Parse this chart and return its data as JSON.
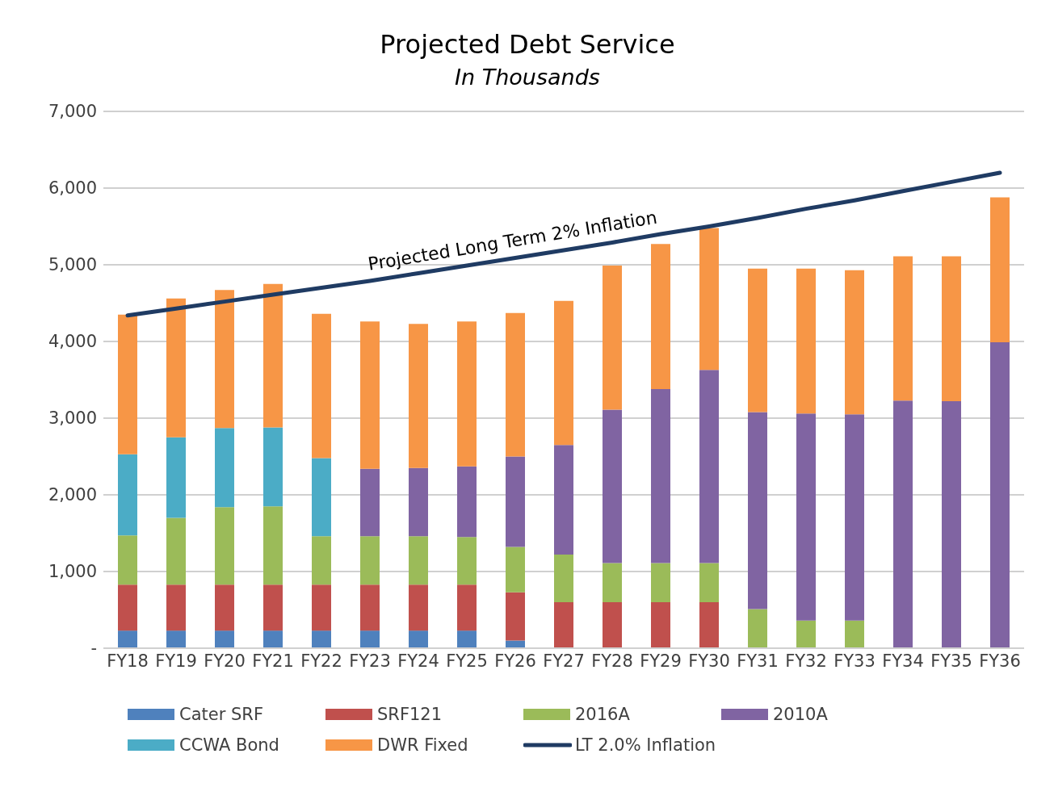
{
  "chart_data": {
    "type": "bar",
    "title": "Projected Debt Service",
    "subtitle": "In Thousands",
    "stacked": true,
    "categories": [
      "FY18",
      "FY19",
      "FY20",
      "FY21",
      "FY22",
      "FY23",
      "FY24",
      "FY25",
      "FY26",
      "FY27",
      "FY28",
      "FY29",
      "FY30",
      "FY31",
      "FY32",
      "FY33",
      "FY34",
      "FY35",
      "FY36"
    ],
    "series": [
      {
        "name": "Cater SRF",
        "color": "#4f81bd",
        "values": [
          230,
          230,
          230,
          230,
          230,
          230,
          230,
          230,
          100,
          null,
          null,
          null,
          null,
          null,
          null,
          null,
          null,
          null,
          null
        ]
      },
      {
        "name": "SRF121",
        "color": "#c0504d",
        "values": [
          600,
          600,
          600,
          600,
          600,
          600,
          600,
          600,
          630,
          600,
          600,
          600,
          600,
          null,
          null,
          null,
          null,
          null,
          null
        ]
      },
      {
        "name": "2016A",
        "color": "#9bbb59",
        "values": [
          640,
          870,
          1010,
          1020,
          630,
          630,
          630,
          620,
          590,
          620,
          510,
          510,
          510,
          510,
          360,
          360,
          null,
          null,
          null
        ]
      },
      {
        "name": "2010A",
        "color": "#8064a2",
        "values": [
          null,
          null,
          null,
          null,
          null,
          880,
          890,
          920,
          1180,
          1430,
          2000,
          2270,
          2520,
          2570,
          2700,
          2690,
          3230,
          3220,
          3990
        ]
      },
      {
        "name": "CCWA Bond",
        "color": "#4bacc6",
        "values": [
          1060,
          1050,
          1030,
          1030,
          1020,
          null,
          null,
          null,
          null,
          null,
          null,
          null,
          null,
          null,
          null,
          null,
          null,
          null,
          null
        ]
      },
      {
        "name": "DWR Fixed",
        "color": "#f79646",
        "values": [
          1820,
          1810,
          1800,
          1870,
          1880,
          1920,
          1880,
          1890,
          1870,
          1880,
          1880,
          1890,
          1850,
          1870,
          1890,
          1880,
          1880,
          1890,
          1890
        ]
      },
      {
        "name": "LT 2.0% Inflation",
        "type": "line",
        "color": "#1f3b63",
        "values": [
          4340,
          4430,
          4520,
          4610,
          4700,
          4790,
          4890,
          4990,
          5090,
          5190,
          5290,
          5400,
          5500,
          5610,
          5730,
          5840,
          5960,
          6080,
          6200
        ]
      }
    ],
    "ylim": [
      0,
      7000
    ],
    "yticks": [
      {
        "value": 0,
        "label": "-"
      },
      {
        "value": 1000,
        "label": "1,000"
      },
      {
        "value": 2000,
        "label": "2,000"
      },
      {
        "value": 3000,
        "label": "3,000"
      },
      {
        "value": 4000,
        "label": "4,000"
      },
      {
        "value": 5000,
        "label": "5,000"
      },
      {
        "value": 6000,
        "label": "6,000"
      },
      {
        "value": 7000,
        "label": "7,000"
      }
    ],
    "grid": "y",
    "legend": "bottom",
    "annotations": [
      {
        "text": "Projected Long Term 2% Inflation",
        "x": "FY26",
        "y": 5090
      }
    ]
  }
}
